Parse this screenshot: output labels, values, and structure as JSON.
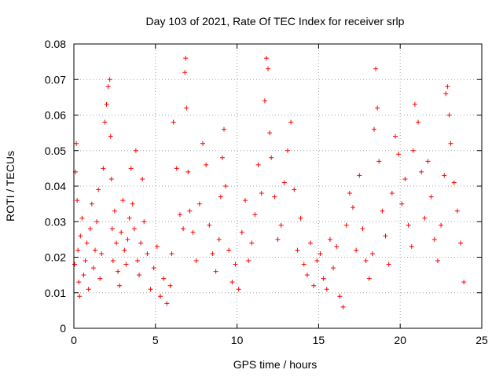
{
  "chart_data": {
    "type": "scatter",
    "title": "Day 103 of 2021, Rate Of TEC Index for receiver srlp",
    "xlabel": "GPS time / hours",
    "ylabel": "ROTI / TECUs",
    "xlim": [
      0,
      25
    ],
    "ylim": [
      0,
      0.08
    ],
    "xticks": [
      0,
      5,
      10,
      15,
      20,
      25
    ],
    "xtick_labels": [
      "0",
      "5",
      "10",
      "15",
      "20",
      "25"
    ],
    "yticks": [
      0,
      0.01,
      0.02,
      0.03,
      0.04,
      0.05,
      0.06,
      0.07,
      0.08
    ],
    "ytick_labels": [
      "0",
      "0.01",
      "0.02",
      "0.03",
      "0.04",
      "0.05",
      "0.06",
      "0.07",
      "0.08"
    ],
    "grid": true,
    "marker": "+",
    "color": "#ff0000",
    "series": [
      {
        "name": "ROTI",
        "x": [
          0.05,
          0.1,
          0.15,
          0.2,
          0.25,
          0.3,
          0.35,
          0.4,
          0.5,
          0.6,
          0.7,
          0.8,
          0.9,
          1.0,
          1.1,
          1.2,
          1.3,
          1.4,
          1.5,
          1.6,
          1.7,
          1.8,
          1.9,
          2.0,
          2.1,
          2.2,
          2.25,
          2.3,
          2.35,
          2.4,
          2.5,
          2.6,
          2.7,
          2.8,
          2.9,
          3.0,
          3.1,
          3.2,
          3.3,
          3.4,
          3.5,
          3.6,
          3.7,
          3.8,
          3.9,
          4.0,
          4.1,
          4.2,
          4.3,
          4.5,
          4.7,
          4.9,
          5.1,
          5.3,
          5.5,
          5.7,
          5.9,
          6.0,
          6.1,
          6.3,
          6.5,
          6.7,
          6.8,
          6.85,
          6.9,
          7.0,
          7.1,
          7.3,
          7.5,
          7.7,
          7.9,
          8.1,
          8.3,
          8.5,
          8.7,
          8.9,
          9.0,
          9.1,
          9.2,
          9.3,
          9.5,
          9.7,
          9.9,
          10.1,
          10.3,
          10.5,
          10.7,
          10.9,
          11.1,
          11.3,
          11.5,
          11.7,
          11.8,
          11.9,
          12.0,
          12.1,
          12.3,
          12.5,
          12.7,
          12.9,
          13.1,
          13.3,
          13.5,
          13.7,
          13.9,
          14.1,
          14.3,
          14.5,
          14.7,
          14.9,
          15.1,
          15.3,
          15.5,
          15.7,
          15.9,
          16.1,
          16.3,
          16.5,
          16.7,
          16.9,
          17.1,
          17.3,
          17.5,
          17.7,
          17.9,
          18.1,
          18.3,
          18.4,
          18.5,
          18.6,
          18.7,
          18.9,
          19.1,
          19.3,
          19.5,
          19.7,
          19.9,
          20.1,
          20.3,
          20.5,
          20.7,
          20.8,
          20.9,
          21.1,
          21.3,
          21.5,
          21.7,
          21.9,
          22.1,
          22.3,
          22.5,
          22.7,
          22.8,
          22.9,
          23.0,
          23.1,
          23.3,
          23.5,
          23.7,
          23.9
        ],
        "y": [
          0.018,
          0.044,
          0.052,
          0.036,
          0.022,
          0.013,
          0.009,
          0.026,
          0.031,
          0.015,
          0.019,
          0.024,
          0.011,
          0.028,
          0.035,
          0.017,
          0.022,
          0.03,
          0.039,
          0.014,
          0.021,
          0.045,
          0.058,
          0.063,
          0.068,
          0.07,
          0.054,
          0.042,
          0.028,
          0.019,
          0.033,
          0.024,
          0.016,
          0.012,
          0.027,
          0.036,
          0.022,
          0.018,
          0.025,
          0.031,
          0.045,
          0.035,
          0.028,
          0.05,
          0.019,
          0.015,
          0.024,
          0.042,
          0.03,
          0.021,
          0.011,
          0.017,
          0.023,
          0.009,
          0.014,
          0.007,
          0.012,
          0.021,
          0.058,
          0.045,
          0.032,
          0.028,
          0.072,
          0.076,
          0.062,
          0.044,
          0.033,
          0.027,
          0.019,
          0.035,
          0.052,
          0.046,
          0.029,
          0.021,
          0.016,
          0.025,
          0.037,
          0.048,
          0.056,
          0.04,
          0.022,
          0.013,
          0.018,
          0.011,
          0.027,
          0.036,
          0.019,
          0.024,
          0.032,
          0.046,
          0.038,
          0.064,
          0.076,
          0.073,
          0.055,
          0.048,
          0.037,
          0.025,
          0.029,
          0.041,
          0.05,
          0.058,
          0.039,
          0.022,
          0.031,
          0.018,
          0.015,
          0.024,
          0.012,
          0.019,
          0.021,
          0.014,
          0.011,
          0.025,
          0.017,
          0.023,
          0.009,
          0.006,
          0.029,
          0.038,
          0.034,
          0.022,
          0.043,
          0.028,
          0.019,
          0.014,
          0.021,
          0.056,
          0.073,
          0.062,
          0.047,
          0.033,
          0.026,
          0.018,
          0.038,
          0.054,
          0.049,
          0.035,
          0.042,
          0.029,
          0.023,
          0.05,
          0.063,
          0.058,
          0.044,
          0.031,
          0.047,
          0.037,
          0.025,
          0.019,
          0.029,
          0.043,
          0.066,
          0.068,
          0.06,
          0.052,
          0.041,
          0.033,
          0.024,
          0.013
        ]
      }
    ]
  }
}
